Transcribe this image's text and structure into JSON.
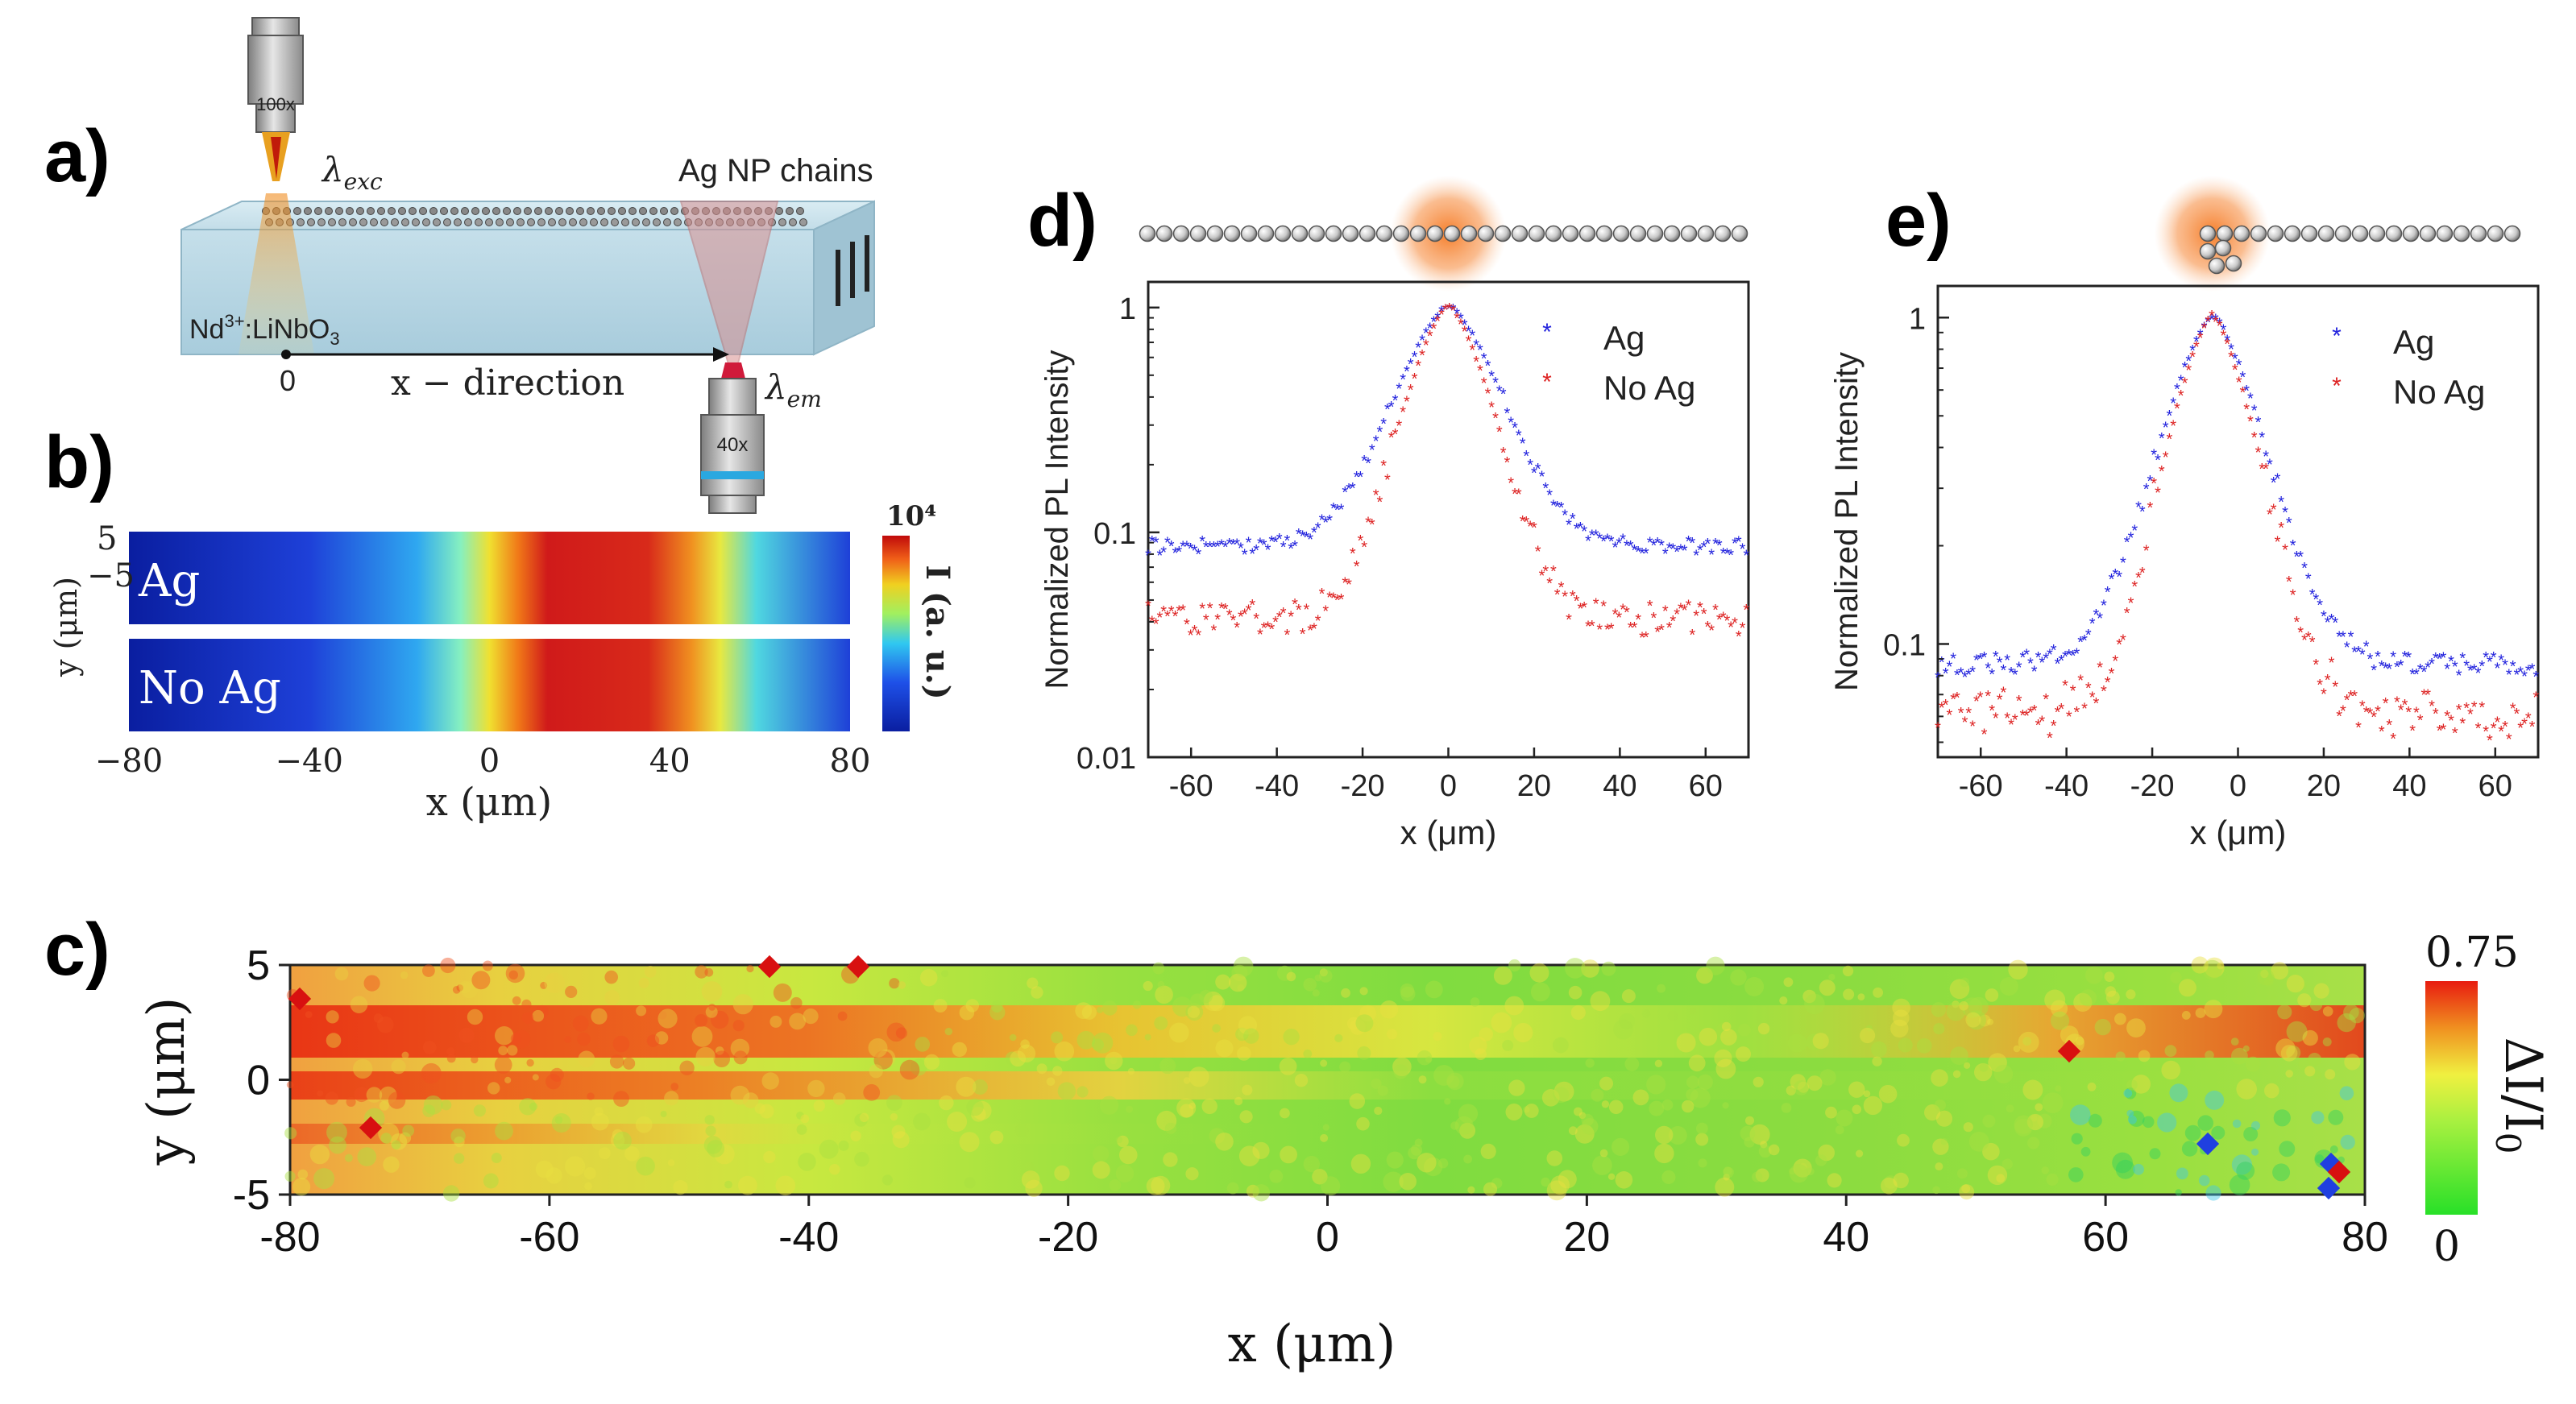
{
  "panel_labels": {
    "a": "a)",
    "b": "b)",
    "c": "c)",
    "d": "d)",
    "e": "e)"
  },
  "schematic": {
    "objective_top": "100x",
    "objective_bottom": "40x",
    "excitation_label": "λexc",
    "emission_label": "λem",
    "chains_label": "Ag NP chains",
    "crystal_label": "Nd3+:LiNbO3",
    "origin_label": "0",
    "direction_label": "x − direction",
    "colors": {
      "crystal": "#bcd9e6",
      "beam_exc": "#f5a623",
      "beam_em": "#d08b8b"
    }
  },
  "chart_data": [
    {
      "id": "b",
      "type": "heatmap",
      "rows": [
        "Ag",
        "No Ag"
      ],
      "x_ticks": [
        "−80",
        "−40",
        "0",
        "40",
        "80"
      ],
      "xlim": [
        -80,
        80
      ],
      "y_ticks": [
        "5",
        "−5"
      ],
      "xlabel": "x (μm)",
      "ylabel": "y (μm)",
      "colorbar_max": "10⁴",
      "colorbar_label": "I (a. u.)",
      "profile_width_um": 14
    },
    {
      "id": "c",
      "type": "heatmap",
      "x_ticks": [
        "-80",
        "-60",
        "-40",
        "-20",
        "0",
        "20",
        "40",
        "60",
        "80"
      ],
      "y_ticks": [
        "5",
        "0",
        "-5"
      ],
      "xlim": [
        -80,
        80
      ],
      "ylim": [
        -5,
        5
      ],
      "xlabel": "x (μm)",
      "ylabel": "y (μm)",
      "colorbar_max": "0.75",
      "colorbar_min": "0",
      "colorbar_label": "ΔI/I0"
    },
    {
      "id": "d",
      "type": "scatter",
      "scale": "log",
      "xlim": [
        -70,
        70
      ],
      "ylim": [
        0.01,
        1.3
      ],
      "x_ticks": [
        "-60",
        "-40",
        "-20",
        "0",
        "20",
        "40",
        "60"
      ],
      "y_ticks": [
        "1",
        "0.1",
        "0.01"
      ],
      "xlabel": "x (μm)",
      "ylabel": "Normalized PL Intensity",
      "center": 0,
      "series": [
        {
          "name": "Ag",
          "color": "#2222dd",
          "decay_um": 15,
          "floor": 0.085
        },
        {
          "name": "No Ag",
          "color": "#dd2222",
          "decay_um": 12,
          "floor": 0.04
        }
      ]
    },
    {
      "id": "e",
      "type": "scatter",
      "scale": "log",
      "xlim": [
        -70,
        70
      ],
      "ylim": [
        0.045,
        1.25
      ],
      "x_ticks": [
        "-60",
        "-40",
        "-20",
        "0",
        "20",
        "40",
        "60"
      ],
      "y_ticks": [
        "1",
        "0.1"
      ],
      "xlabel": "x (μm)",
      "ylabel": "Normalized PL Intensity",
      "center": -6,
      "series": [
        {
          "name": "Ag",
          "color": "#2222dd",
          "decay_um": 15,
          "floor": 0.085
        },
        {
          "name": "No Ag",
          "color": "#dd2222",
          "decay_um": 13,
          "floor": 0.06
        }
      ]
    }
  ]
}
